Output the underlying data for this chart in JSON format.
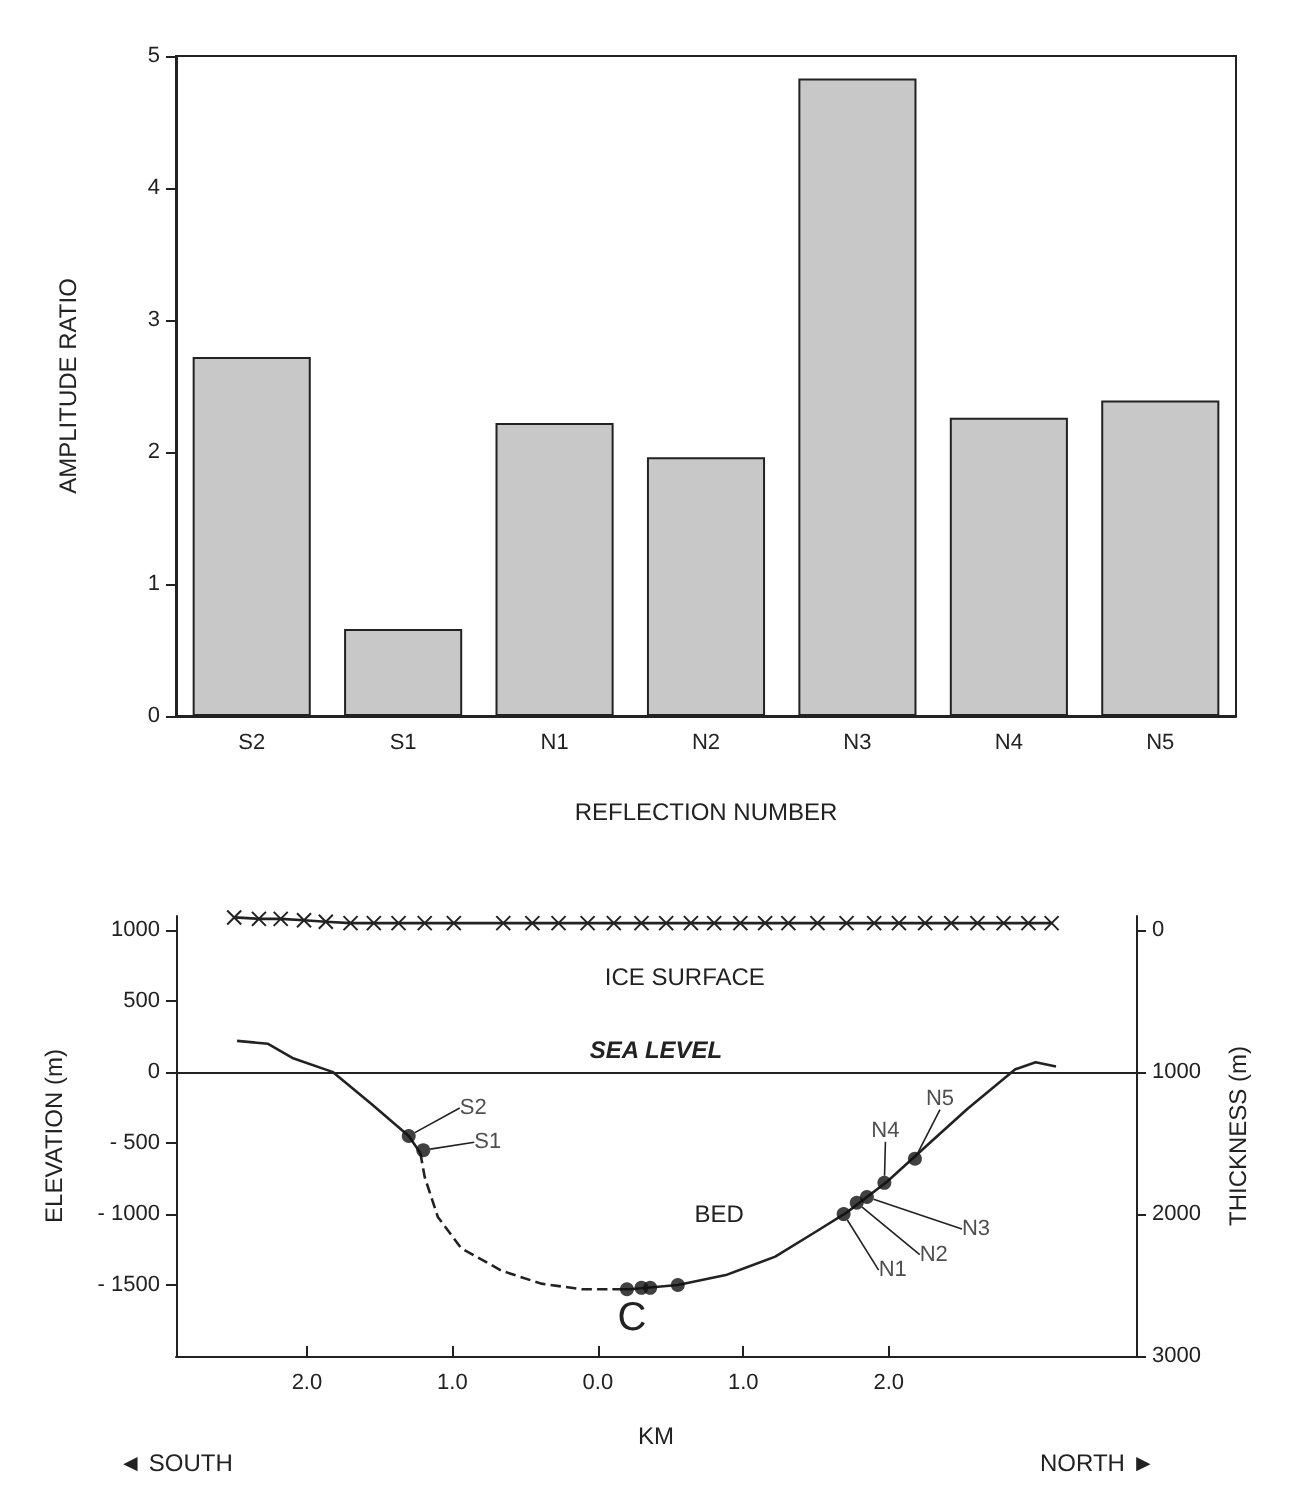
{
  "chart_data": [
    {
      "type": "bar",
      "xlabel": "REFLECTION NUMBER",
      "ylabel": "AMPLITUDE RATIO",
      "categories": [
        "S2",
        "S1",
        "N1",
        "N2",
        "N3",
        "N4",
        "N5"
      ],
      "values": [
        2.72,
        0.66,
        2.22,
        1.96,
        4.83,
        2.26,
        2.39
      ],
      "color": "#c8c8c8",
      "ylim": [
        0,
        5
      ],
      "yticks": [
        0,
        1,
        2,
        3,
        4,
        5
      ],
      "grid": false
    },
    {
      "type": "line",
      "xlabel": "KM",
      "ylabel": "ELEVATION (m)",
      "y2label": "THICKNESS (m)",
      "xlim": [
        -2.9,
        3.7
      ],
      "xticks": [
        {
          "value": -2,
          "label": "2.0"
        },
        {
          "value": -1,
          "label": "1.0"
        },
        {
          "value": 0,
          "label": "0.0"
        },
        {
          "value": 1,
          "label": "1.0"
        },
        {
          "value": 2,
          "label": "2.0"
        }
      ],
      "ylim": [
        -2000,
        1100
      ],
      "yticks": [
        {
          "value": -1500,
          "label": "- 1500"
        },
        {
          "value": -1000,
          "label": "- 1000"
        },
        {
          "value": -500,
          "label": "- 500"
        },
        0,
        500,
        1000
      ],
      "y2lim": [
        3000,
        -100
      ],
      "y2ticks": [
        0,
        1000,
        2000,
        3000
      ],
      "grid": false,
      "series": [
        {
          "color": "#222222",
          "marker": "cross",
          "line_style": "solid",
          "x": [
            -2.5,
            -2.33,
            -2.18,
            -2.02,
            -1.87,
            -1.7,
            -1.54,
            -1.37,
            -1.19,
            -0.99,
            -0.65,
            -0.45,
            -0.27,
            -0.07,
            0.11,
            0.3,
            0.47,
            0.64,
            0.8,
            0.98,
            1.15,
            1.31,
            1.51,
            1.71,
            1.9,
            2.07,
            2.25,
            2.43,
            2.61,
            2.79,
            2.96,
            3.12
          ],
          "values": [
            1090,
            1080,
            1080,
            1070,
            1060,
            1050,
            1050,
            1050,
            1050,
            1050,
            1050,
            1050,
            1050,
            1050,
            1050,
            1050,
            1050,
            1050,
            1050,
            1050,
            1050,
            1050,
            1050,
            1050,
            1050,
            1050,
            1050,
            1050,
            1050,
            1050,
            1050,
            1050
          ]
        },
        {
          "color": "#222222",
          "marker": "none",
          "line_style": "solid",
          "x": [
            -2.48,
            -2.27,
            -2.1,
            -1.82,
            -1.55,
            -1.3,
            -1.22
          ],
          "values": [
            220,
            200,
            100,
            0,
            -230,
            -450,
            -570
          ]
        },
        {
          "color": "#222222",
          "marker": "none",
          "line_style": "dashed",
          "x": [
            -1.22,
            -1.19,
            -1.1,
            -0.94,
            -0.66,
            -0.39,
            -0.11,
            0.1
          ],
          "values": [
            -570,
            -740,
            -1020,
            -1240,
            -1400,
            -1490,
            -1530,
            -1530
          ]
        },
        {
          "color": "#222222",
          "marker": "none",
          "line_style": "solid",
          "x": [
            0.1,
            0.22,
            0.55,
            0.88,
            1.22,
            1.49,
            1.71,
            1.99,
            2.27,
            2.54,
            2.87,
            3.01,
            3.15
          ],
          "values": [
            -1530,
            -1530,
            -1500,
            -1430,
            -1300,
            -1130,
            -990,
            -770,
            -510,
            -260,
            20,
            70,
            40
          ]
        },
        {
          "type": "scatter",
          "color": "#111111",
          "marker": "circle",
          "x": [
            -1.3,
            -1.2,
            0.2,
            0.3,
            0.36,
            0.55,
            1.69,
            1.78,
            1.85,
            1.97,
            2.18
          ],
          "values": [
            -450,
            -550,
            -1530,
            -1520,
            -1520,
            -1500,
            -1000,
            -920,
            -880,
            -780,
            -610
          ],
          "value_labels": [
            "S2",
            "S1",
            null,
            null,
            null,
            null,
            "N1",
            "N2",
            "N3",
            "N4",
            "N5"
          ]
        }
      ],
      "ref_lines": [
        {
          "axis": "y",
          "value": 0,
          "label": "SEA LEVEL"
        }
      ],
      "annotations": [
        "ICE SURFACE",
        "BED",
        "C",
        "◄ SOUTH",
        "NORTH ►"
      ]
    }
  ]
}
